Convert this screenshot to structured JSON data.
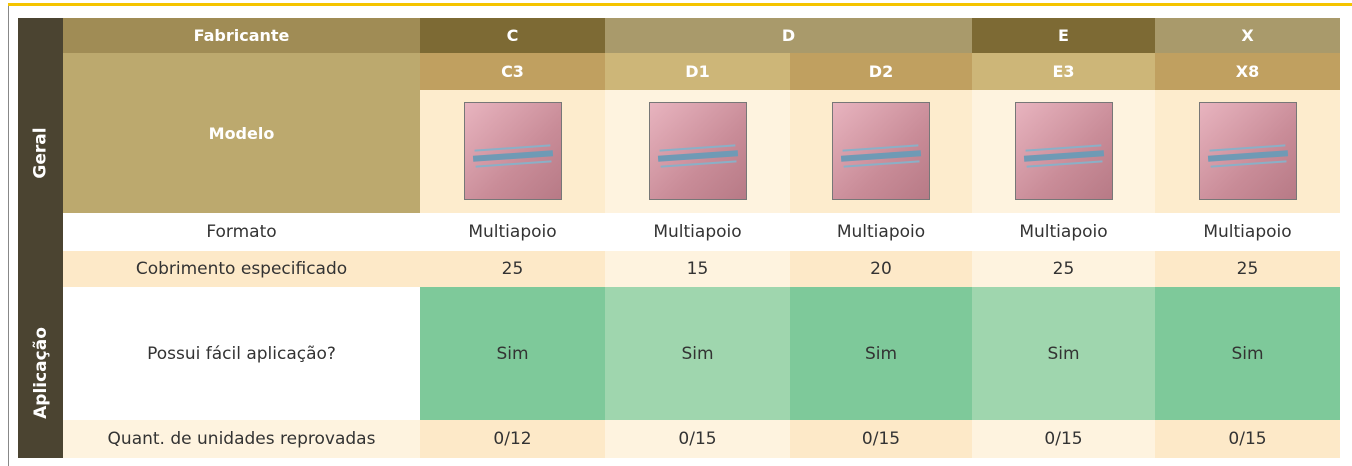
{
  "table": {
    "groups": [
      "Geral",
      "Aplicação"
    ],
    "header": {
      "label": "Fabricante",
      "manufacturers": [
        "C",
        "D",
        "E",
        "X"
      ]
    },
    "models_label": "Modelo",
    "models": [
      "C3",
      "D1",
      "D2",
      "E3",
      "X8"
    ],
    "rows": [
      {
        "label": "Formato",
        "cells": [
          "Multiapoio",
          "Multiapoio",
          "Multiapoio",
          "Multiapoio",
          "Multiapoio"
        ]
      },
      {
        "label": "Cobrimento especificado",
        "cells": [
          25,
          15,
          20,
          25,
          25
        ]
      },
      {
        "label": "Possui fácil aplicação?",
        "cells": [
          "Sim",
          "Sim",
          "Sim",
          "Sim",
          "Sim"
        ]
      },
      {
        "label": "Quant. de unidades reprovadas",
        "cells": [
          "0/12",
          "0/15",
          "0/15",
          "0/15",
          "0/15"
        ]
      }
    ]
  }
}
